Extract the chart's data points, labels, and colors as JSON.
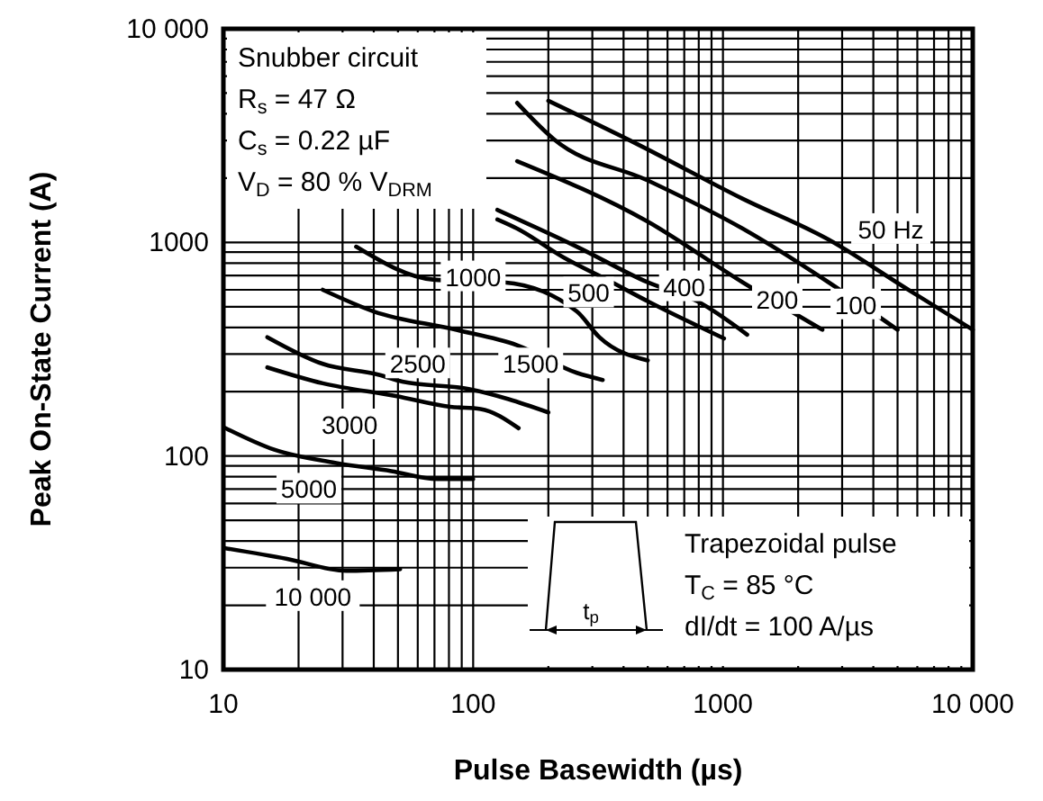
{
  "chart_data": {
    "type": "line",
    "xlabel": "Pulse Basewidth (µs)",
    "ylabel": "Peak On-State Current (A)",
    "log": "xy",
    "grid": true,
    "marker": "none",
    "line_style": "solid",
    "xlim": [
      10,
      10000
    ],
    "xticks": [
      10,
      100,
      1000,
      {
        "value": 10000,
        "label": "10 000"
      }
    ],
    "ylim": [
      10,
      10000
    ],
    "yticks": [
      10,
      100,
      1000,
      {
        "value": 10000,
        "label": "10 000"
      }
    ],
    "series": [
      {
        "color": "#000000",
        "x": [
          200,
          450,
          1200,
          2650,
          5400,
          10000
        ],
        "values": [
          4600,
          2900,
          1600,
          1030,
          610,
          390
        ]
      },
      {
        "color": "#000000",
        "x": [
          150,
          210,
          500,
          1200,
          2650,
          5000
        ],
        "values": [
          4500,
          3050,
          1950,
          1160,
          650,
          390
        ]
      },
      {
        "color": "#000000",
        "x": [
          150,
          500,
          1200,
          2500
        ],
        "values": [
          2400,
          1250,
          650,
          390
        ]
      },
      {
        "color": "#000000",
        "x": [
          125,
          260,
          500,
          790,
          1250
        ],
        "values": [
          1420,
          955,
          650,
          530,
          370
        ]
      },
      {
        "color": "#000000",
        "x": [
          125,
          150,
          230,
          360,
          500,
          1010
        ],
        "values": [
          1280,
          1160,
          850,
          650,
          530,
          355
        ]
      },
      {
        "color": "#000000",
        "x": [
          34,
          69,
          133,
          260,
          320,
          500
        ],
        "values": [
          955,
          670,
          650,
          475,
          360,
          280
        ]
      },
      {
        "color": "#000000",
        "x": [
          25,
          40,
          85,
          150,
          260,
          330
        ],
        "values": [
          600,
          475,
          390,
          330,
          245,
          227
        ]
      },
      {
        "color": "#000000",
        "x": [
          15,
          25,
          42,
          52,
          96,
          200
        ],
        "values": [
          360,
          270,
          240,
          223,
          206,
          160
        ]
      },
      {
        "color": "#000000",
        "x": [
          15,
          25,
          49,
          81,
          107,
          152
        ],
        "values": [
          260,
          219,
          191,
          170,
          166,
          135
        ]
      },
      {
        "color": "#000000",
        "x": [
          10.2,
          16,
          28,
          47,
          72,
          100
        ],
        "values": [
          135,
          107,
          93,
          85,
          78,
          78
        ]
      },
      {
        "name": "10 000",
        "color": "#000000",
        "x": [
          10.2,
          18,
          31,
          51
        ],
        "values": [
          37,
          33,
          29,
          29.5
        ]
      }
    ],
    "annotations": [
      {
        "text": "50 Hz",
        "x": 4700,
        "y": 1150
      },
      {
        "text": "100",
        "x": 3400,
        "y": 510
      },
      {
        "text": "200",
        "x": 1650,
        "y": 540
      },
      {
        "text": "400",
        "x": 700,
        "y": 620
      },
      {
        "text": "500",
        "x": 290,
        "y": 580
      },
      {
        "text": "1000",
        "x": 100,
        "y": 690
      },
      {
        "text": "1500",
        "x": 170,
        "y": 270
      },
      {
        "text": "2500",
        "x": 60,
        "y": 270
      },
      {
        "text": "3000",
        "x": 32,
        "y": 140
      },
      {
        "text": "5000",
        "x": 22,
        "y": 70
      },
      "Snubber circuit\nR$_{s}$ = 47 Ω\nC$_{s}$ = 0.22 µF\nV$_{D}$ = 80 % V$_{DRM}$",
      "Trapezoidal pulse\nT$_{C}$ = 85 °C\ndI/dt = 100 A/µs",
      "t$_{p}$"
    ]
  }
}
